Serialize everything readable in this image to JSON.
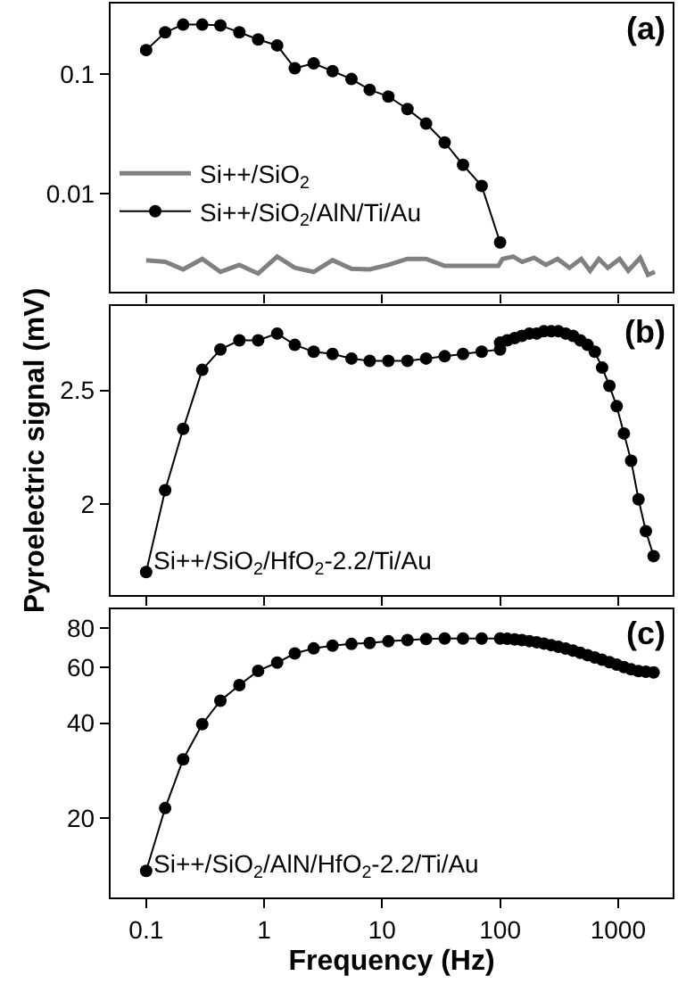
{
  "chart_data": [
    {
      "type": "line",
      "log": "xy",
      "xlim": [
        0.05,
        2900
      ],
      "ylim": [
        0.0015,
        0.39
      ],
      "xticks": [
        0.1,
        1,
        10,
        100,
        1000
      ],
      "yticks": [
        0.01,
        0.1
      ],
      "tick_labels": "y",
      "legend": "bottom left",
      "annotations": [
        "(a)"
      ],
      "series": [
        {
          "name": "Si++/SiO$_{2}$",
          "color": "#808080",
          "marker": "none",
          "x": [
            0.1,
            0.145,
            0.206,
            0.299,
            0.426,
            0.617,
            0.89,
            1.29,
            1.82,
            2.63,
            3.8,
            5.5,
            7.85,
            11.3,
            16.4,
            23.6,
            33.9,
            48.5,
            69.8,
            96.6,
            105,
            129,
            154,
            194,
            244,
            307,
            387,
            487,
            579,
            688,
            818,
            1030,
            1220,
            1540,
            1790,
            2050
          ],
          "values": [
            0.00277,
            0.00268,
            0.00232,
            0.00284,
            0.00221,
            0.00253,
            0.00214,
            0.00297,
            0.00239,
            0.00221,
            0.00277,
            0.00235,
            0.00232,
            0.00253,
            0.00284,
            0.00284,
            0.00248,
            0.00248,
            0.00248,
            0.00248,
            0.00284,
            0.00297,
            0.00268,
            0.0029,
            0.00253,
            0.00284,
            0.00239,
            0.00284,
            0.00226,
            0.00284,
            0.00239,
            0.00284,
            0.00226,
            0.0029,
            0.00209,
            0.00221
          ]
        },
        {
          "name": "Si++/SiO$_{2}$/AlN/Ti/Au",
          "color": "#000000",
          "marker": "circle",
          "x": [
            0.1,
            0.145,
            0.206,
            0.299,
            0.426,
            0.617,
            0.89,
            1.29,
            1.82,
            2.63,
            3.8,
            5.5,
            7.85,
            11.3,
            16.4,
            23.6,
            33.9,
            48.5,
            69.8,
            100
          ],
          "values": [
            0.159,
            0.224,
            0.26,
            0.26,
            0.256,
            0.224,
            0.195,
            0.174,
            0.112,
            0.123,
            0.106,
            0.091,
            0.074,
            0.065,
            0.051,
            0.0385,
            0.0268,
            0.0174,
            0.0116,
            0.0039
          ]
        }
      ]
    },
    {
      "type": "line",
      "log": "x",
      "xlim": [
        0.05,
        2900
      ],
      "ylim": [
        1.6,
        2.87
      ],
      "xticks": [
        0.1,
        1,
        10,
        100,
        1000
      ],
      "yticks": [
        2,
        2.5
      ],
      "tick_labels": "y",
      "ylabel": "Pyroelectric signal (mV)",
      "annotations": [
        "(b)",
        "Si++/SiO$_{2}$/HfO$_{2}$-2.2/Ti/Au"
      ],
      "series": [
        {
          "color": "#000000",
          "marker": "circle",
          "x": [
            0.1,
            0.145,
            0.206,
            0.299,
            0.426,
            0.617,
            0.89,
            1.29,
            1.82,
            2.63,
            3.8,
            5.5,
            7.85,
            11.3,
            16.4,
            23.6,
            33.9,
            48.5,
            69.8,
            100,
            100,
            115,
            133,
            153,
            177,
            204,
            235,
            271,
            312,
            360,
            415,
            478,
            551,
            635,
            732,
            844,
            973,
            1120,
            1290,
            1490,
            1720,
            2000
          ],
          "values": [
            1.7,
            2.06,
            2.33,
            2.59,
            2.68,
            2.72,
            2.72,
            2.75,
            2.7,
            2.67,
            2.66,
            2.64,
            2.63,
            2.63,
            2.63,
            2.64,
            2.65,
            2.66,
            2.67,
            2.68,
            2.71,
            2.72,
            2.73,
            2.74,
            2.75,
            2.75,
            2.76,
            2.76,
            2.76,
            2.75,
            2.74,
            2.72,
            2.7,
            2.67,
            2.6,
            2.52,
            2.43,
            2.31,
            2.19,
            2.02,
            1.88,
            1.77
          ]
        }
      ]
    },
    {
      "type": "line",
      "log": "xy",
      "xlim": [
        0.05,
        2900
      ],
      "ylim": [
        11.2,
        92
      ],
      "xticks": [
        0.1,
        1,
        10,
        100,
        1000
      ],
      "yticks": [
        20,
        40,
        60,
        80
      ],
      "xlabel": "Frequency (Hz)",
      "annotations": [
        "(c)",
        "Si++/SiO$_{2}$/AlN/HfO$_{2}$-2.2/Ti/Au"
      ],
      "series": [
        {
          "color": "#000000",
          "marker": "circle",
          "x": [
            0.1,
            0.145,
            0.206,
            0.299,
            0.426,
            0.617,
            0.89,
            1.29,
            1.82,
            2.63,
            3.8,
            5.5,
            7.85,
            11.3,
            16.4,
            23.6,
            33.9,
            48.5,
            69.8,
            100,
            115,
            133,
            153,
            177,
            204,
            235,
            271,
            312,
            360,
            415,
            478,
            551,
            635,
            732,
            844,
            973,
            1120,
            1290,
            1490,
            1720,
            2000
          ],
          "values": [
            13.6,
            21.5,
            30.7,
            39.7,
            47.1,
            52.8,
            58.6,
            62.2,
            66.5,
            69,
            70.4,
            71.3,
            71.8,
            72.7,
            73.3,
            73.9,
            74.2,
            74.2,
            74.2,
            74.2,
            74,
            73.7,
            73.3,
            72.8,
            72.2,
            71.5,
            70.7,
            69.8,
            68.9,
            67.9,
            66.8,
            65.7,
            64.6,
            63.5,
            62.4,
            61.3,
            60.2,
            59.2,
            58.5,
            58.2,
            57.9
          ]
        }
      ]
    }
  ]
}
